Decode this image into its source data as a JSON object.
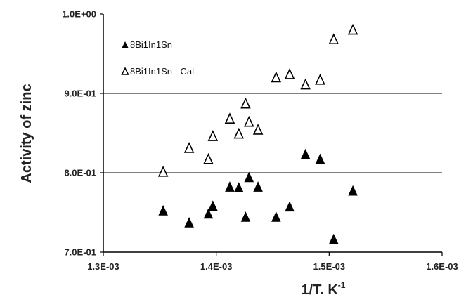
{
  "chart_data": {
    "type": "scatter",
    "xlabel": "1/T. K",
    "xlabel_sup": "-1",
    "ylabel": "Activity of zinc",
    "xlim": [
      0.0013,
      0.0016
    ],
    "ylim": [
      0.7,
      1.0
    ],
    "x_ticks": [
      0.0013,
      0.0014,
      0.0015,
      0.0016
    ],
    "x_tick_labels": [
      "1.3E-03",
      "1.4E-03",
      "1.5E-03",
      "1.6E-03"
    ],
    "y_ticks": [
      0.7,
      0.8,
      0.9,
      1.0
    ],
    "y_tick_labels": [
      "7.0E-01",
      "8.0E-01",
      "9.0E-01",
      "1.0E+00"
    ],
    "grid": "horizontal",
    "legend_position": "top-left",
    "series": [
      {
        "name": "8Bi1In1Sn",
        "marker": "filled-triangle",
        "color": "#000000",
        "points": [
          [
            0.001353,
            0.752
          ],
          [
            0.001376,
            0.737
          ],
          [
            0.001393,
            0.748
          ],
          [
            0.001397,
            0.758
          ],
          [
            0.001412,
            0.782
          ],
          [
            0.00142,
            0.781
          ],
          [
            0.001426,
            0.744
          ],
          [
            0.001429,
            0.794
          ],
          [
            0.001437,
            0.782
          ],
          [
            0.001453,
            0.744
          ],
          [
            0.001465,
            0.757
          ],
          [
            0.001479,
            0.823
          ],
          [
            0.001492,
            0.817
          ],
          [
            0.001504,
            0.716
          ],
          [
            0.001521,
            0.777
          ]
        ]
      },
      {
        "name": "8Bi1In1Sn - Cal",
        "marker": "open-triangle",
        "color": "#000000",
        "points": [
          [
            0.001353,
            0.801
          ],
          [
            0.001376,
            0.831
          ],
          [
            0.001393,
            0.817
          ],
          [
            0.001397,
            0.846
          ],
          [
            0.001412,
            0.868
          ],
          [
            0.00142,
            0.849
          ],
          [
            0.001426,
            0.887
          ],
          [
            0.001429,
            0.864
          ],
          [
            0.001437,
            0.854
          ],
          [
            0.001453,
            0.92
          ],
          [
            0.001465,
            0.924
          ],
          [
            0.001479,
            0.911
          ],
          [
            0.001492,
            0.917
          ],
          [
            0.001504,
            0.968
          ],
          [
            0.001521,
            0.98
          ]
        ]
      }
    ]
  }
}
